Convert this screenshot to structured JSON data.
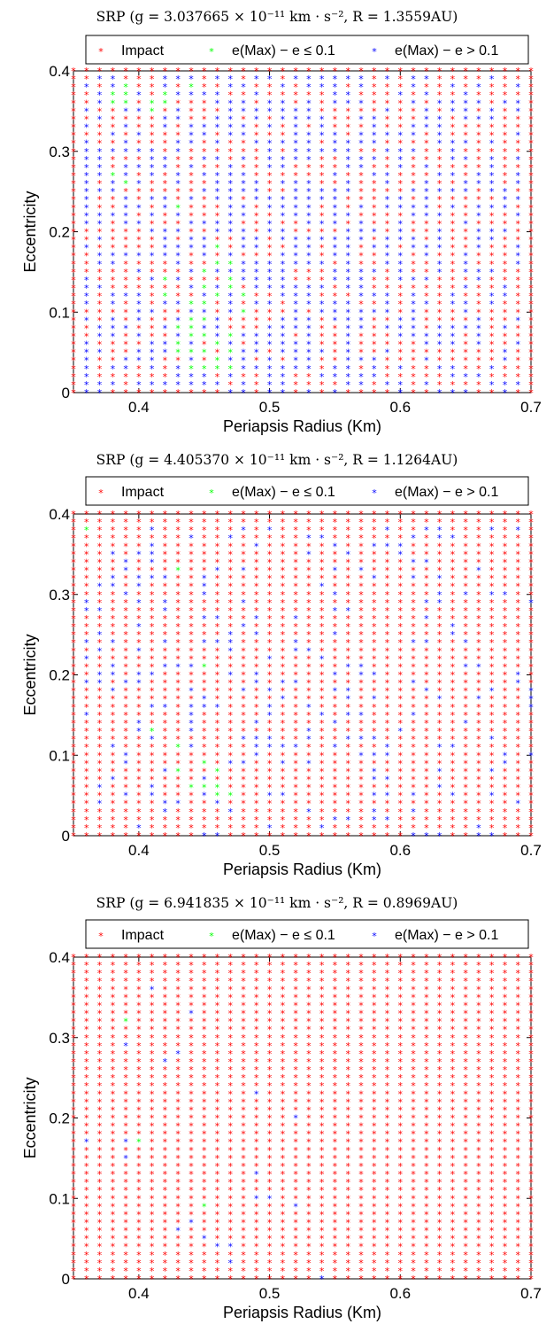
{
  "chart_data": [
    {
      "type": "scatter",
      "title": "SRP (g = 3.037665 × 10⁻¹¹ km · s⁻², R = 1.3559AU)",
      "xlabel": "Periapsis Radius (Km)",
      "ylabel": "Eccentricity",
      "xlim": [
        0.35,
        0.7
      ],
      "ylim": [
        0,
        0.4
      ],
      "xticks": [
        "0.4",
        "0.5",
        "0.6",
        "0.7"
      ],
      "yticks": [
        "0",
        "0.1",
        "0.2",
        "0.3",
        "0.4"
      ],
      "grid": false,
      "legend_position": "top",
      "series": [
        {
          "name": "Impact",
          "color": "#ff0000",
          "marker": "*",
          "note": "all remaining grid points (x step 0.01, y step 0.01)"
        },
        {
          "name": "e(Max) − e ≤ 0.1",
          "color": "#00ff00",
          "marker": "*",
          "points": [
            [
              0.38,
              0.37
            ],
            [
              0.38,
              0.36
            ],
            [
              0.38,
              0.27
            ],
            [
              0.39,
              0.38
            ],
            [
              0.39,
              0.37
            ],
            [
              0.39,
              0.36
            ],
            [
              0.39,
              0.26
            ],
            [
              0.41,
              0.36
            ],
            [
              0.41,
              0.35
            ],
            [
              0.42,
              0.37
            ],
            [
              0.42,
              0.36
            ],
            [
              0.42,
              0.14
            ],
            [
              0.42,
              0.12
            ],
            [
              0.43,
              0.23
            ],
            [
              0.43,
              0.08
            ],
            [
              0.43,
              0.06
            ],
            [
              0.43,
              0.05
            ],
            [
              0.44,
              0.38
            ],
            [
              0.44,
              0.11
            ],
            [
              0.44,
              0.09
            ],
            [
              0.44,
              0.08
            ],
            [
              0.44,
              0.07
            ],
            [
              0.44,
              0.05
            ],
            [
              0.44,
              0.03
            ],
            [
              0.45,
              0.15
            ],
            [
              0.45,
              0.13
            ],
            [
              0.45,
              0.11
            ],
            [
              0.45,
              0.09
            ],
            [
              0.45,
              0.07
            ],
            [
              0.45,
              0.05
            ],
            [
              0.45,
              0.03
            ],
            [
              0.46,
              0.18
            ],
            [
              0.46,
              0.16
            ],
            [
              0.46,
              0.12
            ],
            [
              0.46,
              0.06
            ],
            [
              0.46,
              0.04
            ],
            [
              0.46,
              0.03
            ],
            [
              0.47,
              0.16
            ],
            [
              0.47,
              0.14
            ],
            [
              0.47,
              0.13
            ],
            [
              0.47,
              0.07
            ],
            [
              0.47,
              0.05
            ],
            [
              0.47,
              0.03
            ],
            [
              0.48,
              0.12
            ],
            [
              0.48,
              0.1
            ]
          ]
        },
        {
          "name": "e(Max) − e >  0.1",
          "color": "#0000ff",
          "marker": "*",
          "dense": true,
          "x_range": [
            0.36,
            0.69
          ],
          "y_range": [
            0.0,
            0.39
          ]
        }
      ]
    },
    {
      "type": "scatter",
      "title": "SRP (g = 4.405370 × 10⁻¹¹ km · s⁻², R = 1.1264AU)",
      "xlabel": "Periapsis Radius (Km)",
      "ylabel": "Eccentricity",
      "xlim": [
        0.35,
        0.7
      ],
      "ylim": [
        0,
        0.4
      ],
      "xticks": [
        "0.4",
        "0.5",
        "0.6",
        "0.7"
      ],
      "yticks": [
        "0",
        "0.1",
        "0.2",
        "0.3",
        "0.4"
      ],
      "grid": false,
      "legend_position": "top",
      "series": [
        {
          "name": "Impact",
          "color": "#ff0000",
          "marker": "*",
          "note": "all remaining grid points (x step 0.01, y step 0.01)"
        },
        {
          "name": "e(Max) − e ≤ 0.1",
          "color": "#00ff00",
          "marker": "*",
          "points": [
            [
              0.36,
              0.38
            ],
            [
              0.43,
              0.33
            ],
            [
              0.43,
              0.11
            ],
            [
              0.43,
              0.08
            ],
            [
              0.44,
              0.06
            ],
            [
              0.45,
              0.21
            ],
            [
              0.45,
              0.09
            ],
            [
              0.45,
              0.06
            ],
            [
              0.46,
              0.08
            ],
            [
              0.46,
              0.06
            ],
            [
              0.46,
              0.05
            ],
            [
              0.47,
              0.05
            ],
            [
              0.41,
              0.13
            ]
          ]
        },
        {
          "name": "e(Max) − e >  0.1",
          "color": "#0000ff",
          "marker": "*",
          "dense": true,
          "x_range": [
            0.36,
            0.7
          ],
          "y_range": [
            0.0,
            0.38
          ]
        }
      ]
    },
    {
      "type": "scatter",
      "title": "SRP (g = 6.941835 × 10⁻¹¹ km · s⁻², R = 0.8969AU)",
      "xlabel": "Periapsis Radius (Km)",
      "ylabel": "Eccentricity",
      "xlim": [
        0.35,
        0.7
      ],
      "ylim": [
        0,
        0.4
      ],
      "xticks": [
        "0.4",
        "0.5",
        "0.6",
        "0.7"
      ],
      "yticks": [
        "0",
        "0.1",
        "0.2",
        "0.3",
        "0.4"
      ],
      "grid": false,
      "legend_position": "top",
      "series": [
        {
          "name": "Impact",
          "color": "#ff0000",
          "marker": "*",
          "note": "all remaining grid points (x step 0.01, y step 0.01)"
        },
        {
          "name": "e(Max) − e ≤ 0.1",
          "color": "#00ff00",
          "marker": "*",
          "points": [
            [
              0.39,
              0.32
            ],
            [
              0.4,
              0.17
            ],
            [
              0.45,
              0.09
            ]
          ]
        },
        {
          "name": "e(Max) − e >  0.1",
          "color": "#0000ff",
          "marker": "*",
          "points": [
            [
              0.36,
              0.17
            ],
            [
              0.39,
              0.29
            ],
            [
              0.39,
              0.17
            ],
            [
              0.39,
              0.15
            ],
            [
              0.41,
              0.36
            ],
            [
              0.42,
              0.27
            ],
            [
              0.43,
              0.28
            ],
            [
              0.43,
              0.06
            ],
            [
              0.44,
              0.33
            ],
            [
              0.44,
              0.07
            ],
            [
              0.45,
              0.05
            ],
            [
              0.46,
              0.04
            ],
            [
              0.47,
              0.04
            ],
            [
              0.47,
              0.02
            ],
            [
              0.49,
              0.23
            ],
            [
              0.49,
              0.13
            ],
            [
              0.49,
              0.1
            ],
            [
              0.5,
              0.1
            ],
            [
              0.52,
              0.2
            ],
            [
              0.52,
              0.09
            ],
            [
              0.54,
              0.0
            ]
          ]
        }
      ]
    }
  ]
}
